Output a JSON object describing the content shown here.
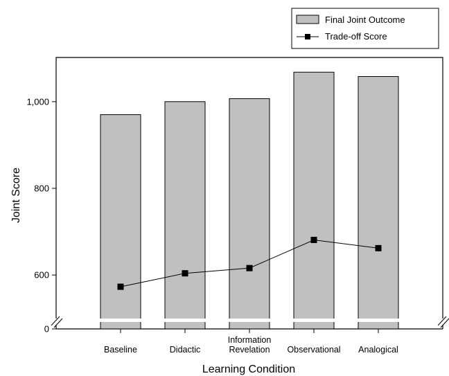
{
  "chart_data": {
    "type": "bar",
    "xlabel": "Learning Condition",
    "ylabel": "Joint Score",
    "categories": [
      [
        "Baseline"
      ],
      [
        "Didactic"
      ],
      [
        "Information",
        "Revelation"
      ],
      [
        "Observational"
      ],
      [
        "Analogical"
      ]
    ],
    "series": [
      {
        "name": "Final Joint Outcome",
        "kind": "bar",
        "values": [
          970,
          1000,
          1007,
          1068,
          1058
        ]
      },
      {
        "name": "Trade-off Score",
        "kind": "line",
        "values": [
          573,
          604,
          616,
          681,
          662
        ]
      }
    ],
    "yticks": [
      {
        "value": 0,
        "label": "0"
      },
      {
        "value": 600,
        "label": "600"
      },
      {
        "value": 800,
        "label": "800"
      },
      {
        "value": 1000,
        "label": "1,000"
      }
    ],
    "ylim": [
      500,
      1100
    ],
    "axis_break": true,
    "grid": false,
    "legend_position": "top-right",
    "colors": {
      "bar_fill": "#c0c0c0",
      "bar_stroke": "#000000",
      "line": "#000000",
      "marker": "#000000"
    }
  }
}
